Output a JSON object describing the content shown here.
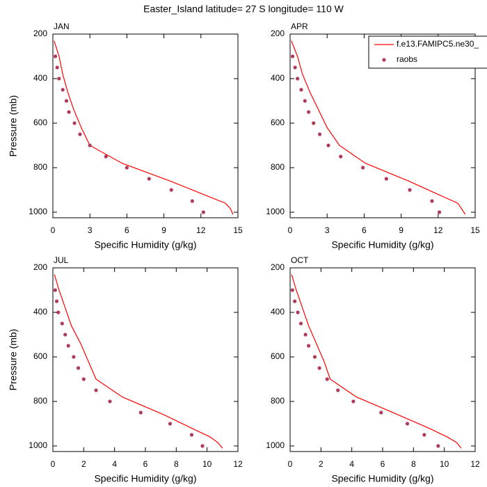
{
  "title": "Easter_Island  latitude= 27 S longitude= 110 W",
  "chart_data": [
    {
      "type": "line",
      "title": "JAN",
      "xlabel": "Specific Humidity (g/kg)",
      "ylabel": "Pressure (mb)",
      "xlim": [
        0,
        15
      ],
      "xticks": [
        0,
        3,
        6,
        9,
        12,
        15
      ],
      "ylim": [
        1025,
        200
      ],
      "yticks": [
        200,
        400,
        600,
        800,
        1000
      ],
      "series": [
        {
          "style": "line",
          "color": "#ff0000",
          "x": [
            0.1,
            0.5,
            0.8,
            1.2,
            1.7,
            2.3,
            3.0,
            5.6,
            9.5,
            12.2,
            14.0,
            14.4,
            14.6
          ],
          "y": [
            230,
            300,
            380,
            460,
            540,
            620,
            700,
            780,
            860,
            920,
            960,
            985,
            1010
          ]
        },
        {
          "style": "markers",
          "color": "#b03a5a",
          "x": [
            0.2,
            0.35,
            0.5,
            0.8,
            1.1,
            1.3,
            1.75,
            2.2,
            3.0,
            4.3,
            6.0,
            7.8,
            9.6,
            11.3,
            12.2
          ],
          "y": [
            300,
            350,
            400,
            450,
            500,
            550,
            600,
            650,
            700,
            750,
            800,
            850,
            900,
            950,
            1000
          ]
        }
      ]
    },
    {
      "type": "line",
      "title": "APR",
      "xlabel": "Specific Humidity (g/kg)",
      "legend": "top-right",
      "xlim": [
        0,
        15
      ],
      "xticks": [
        0,
        3,
        6,
        9,
        12,
        15
      ],
      "ylim": [
        1025,
        200
      ],
      "yticks": [
        200,
        400,
        600,
        800,
        1000
      ],
      "series": [
        {
          "name": "f.e13.FAMIPC5.ne30_",
          "style": "line",
          "color": "#ff0000",
          "x": [
            0.1,
            0.6,
            1.0,
            1.6,
            2.3,
            3.0,
            4.0,
            6.1,
            9.6,
            12.0,
            13.6,
            13.9,
            14.2
          ],
          "y": [
            230,
            300,
            380,
            460,
            540,
            620,
            700,
            780,
            860,
            920,
            960,
            985,
            1010
          ]
        },
        {
          "name": "raobs",
          "style": "markers",
          "color": "#b03a5a",
          "x": [
            0.2,
            0.4,
            0.6,
            0.9,
            1.2,
            1.5,
            1.9,
            2.4,
            3.1,
            4.1,
            5.9,
            7.8,
            9.7,
            11.5,
            12.1
          ],
          "y": [
            300,
            350,
            400,
            450,
            500,
            550,
            600,
            650,
            700,
            750,
            800,
            850,
            900,
            950,
            1000
          ]
        }
      ]
    },
    {
      "type": "line",
      "title": "JUL",
      "xlabel": "Specific Humidity (g/kg)",
      "ylabel": "Pressure (mb)",
      "xlim": [
        0,
        12
      ],
      "xticks": [
        0,
        2,
        4,
        6,
        8,
        10,
        12
      ],
      "ylim": [
        1025,
        200
      ],
      "yticks": [
        200,
        400,
        600,
        800,
        1000
      ],
      "series": [
        {
          "style": "line",
          "color": "#ff0000",
          "x": [
            0.1,
            0.4,
            0.8,
            1.2,
            1.8,
            2.3,
            2.8,
            4.5,
            7.2,
            9.0,
            10.2,
            10.7,
            11.0
          ],
          "y": [
            230,
            300,
            380,
            460,
            540,
            620,
            700,
            780,
            860,
            920,
            960,
            985,
            1010
          ]
        },
        {
          "style": "markers",
          "color": "#b03a5a",
          "x": [
            0.15,
            0.25,
            0.35,
            0.6,
            0.8,
            1.0,
            1.35,
            1.65,
            2.0,
            2.8,
            3.7,
            5.7,
            7.6,
            9.0,
            9.7
          ],
          "y": [
            300,
            350,
            400,
            450,
            500,
            550,
            600,
            650,
            700,
            750,
            800,
            850,
            900,
            950,
            1000
          ]
        }
      ]
    },
    {
      "type": "line",
      "title": "OCT",
      "xlabel": "Specific Humidity (g/kg)",
      "xlim": [
        0,
        12
      ],
      "xticks": [
        0,
        2,
        4,
        6,
        8,
        10,
        12
      ],
      "ylim": [
        1025,
        200
      ],
      "yticks": [
        200,
        400,
        600,
        800,
        1000
      ],
      "series": [
        {
          "style": "line",
          "color": "#ff0000",
          "x": [
            0.1,
            0.4,
            0.8,
            1.2,
            1.7,
            2.2,
            2.6,
            4.3,
            7.0,
            9.0,
            10.2,
            10.8,
            11.1
          ],
          "y": [
            230,
            300,
            380,
            460,
            540,
            620,
            700,
            780,
            860,
            920,
            960,
            985,
            1010
          ]
        },
        {
          "style": "markers",
          "color": "#b03a5a",
          "x": [
            0.15,
            0.3,
            0.5,
            0.7,
            1.0,
            1.2,
            1.6,
            1.9,
            2.4,
            3.1,
            4.1,
            5.9,
            7.6,
            8.7,
            9.6
          ],
          "y": [
            300,
            350,
            400,
            450,
            500,
            550,
            600,
            650,
            700,
            750,
            800,
            850,
            900,
            950,
            1000
          ]
        }
      ]
    }
  ]
}
